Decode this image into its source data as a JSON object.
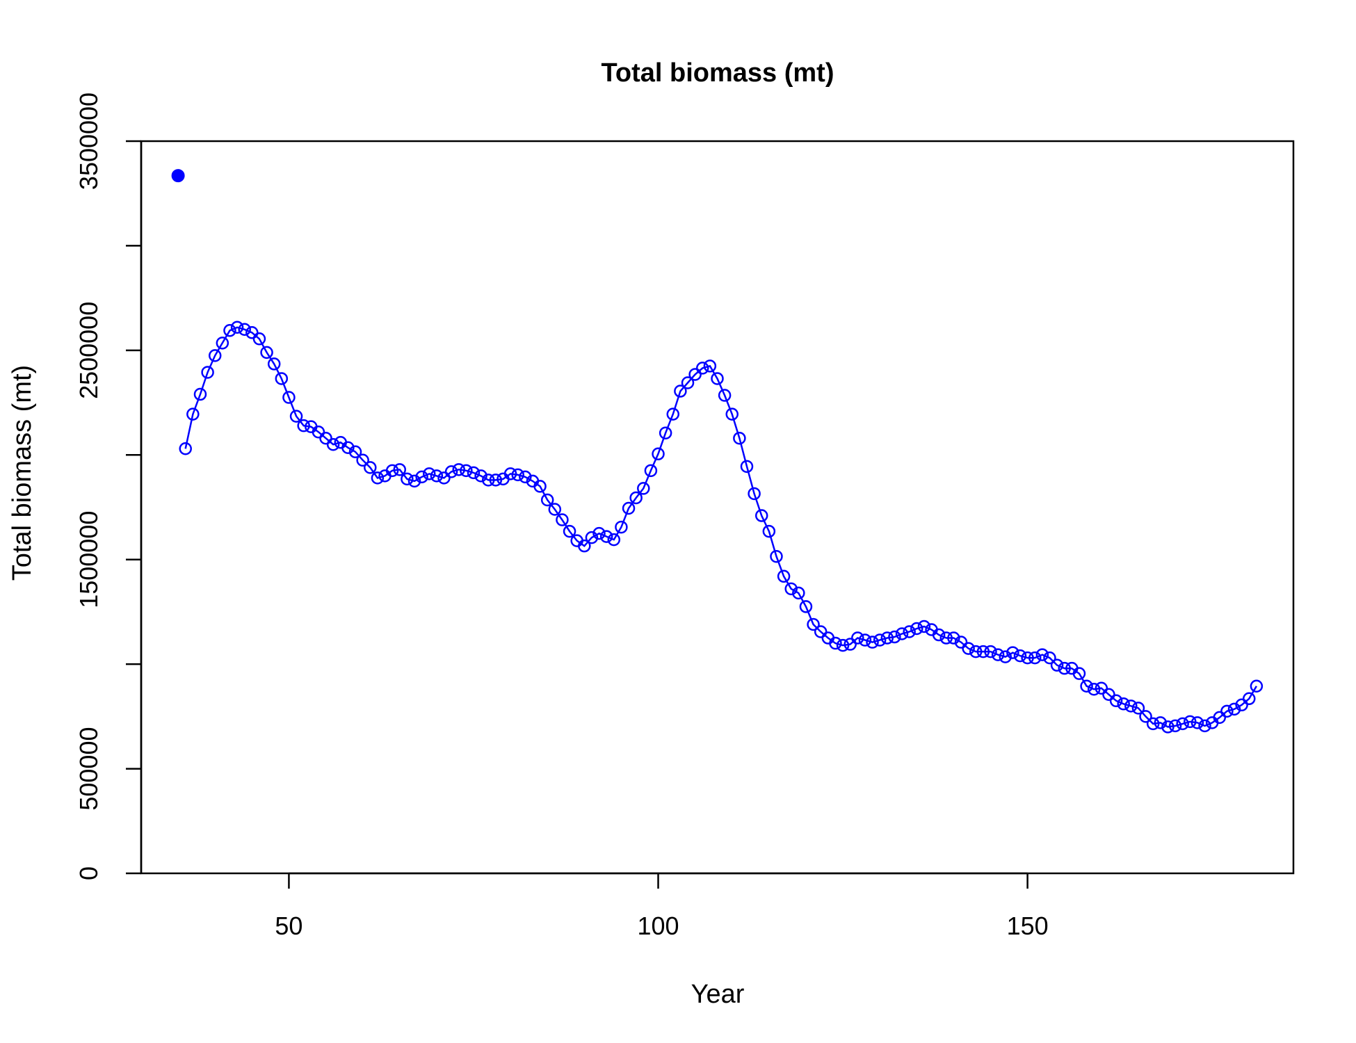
{
  "chart_data": {
    "type": "line",
    "title": "Total biomass (mt)",
    "xlabel": "Year",
    "ylabel": "Total biomass (mt)",
    "xlim": [
      30,
      186
    ],
    "ylim": [
      0,
      3500000
    ],
    "x_ticks": [
      50,
      100,
      150
    ],
    "y_ticks": [
      0,
      500000,
      1000000,
      1500000,
      2000000,
      2500000,
      3000000,
      3500000
    ],
    "y_tick_labels": [
      "0",
      "500000",
      "",
      "1500000",
      "",
      "2500000",
      "",
      "3500000"
    ],
    "grid": false,
    "line_color": "#0000ff",
    "virgin_point": {
      "x": 35,
      "y": 3335000
    },
    "series": [
      {
        "x": [
          36,
          37,
          38,
          39,
          40,
          41,
          42,
          43,
          44,
          45,
          46,
          47,
          48,
          49,
          50,
          51,
          52,
          53,
          54,
          55,
          56,
          57,
          58,
          59,
          60,
          61,
          62,
          63,
          64,
          65,
          66,
          67,
          68,
          69,
          70,
          71,
          72,
          73,
          74,
          75,
          76,
          77,
          78,
          79,
          80,
          81,
          82,
          83,
          84,
          85,
          86,
          87,
          88,
          89,
          90,
          91,
          92,
          93,
          94,
          95,
          96,
          97,
          98,
          99,
          100,
          101,
          102,
          103,
          104,
          105,
          106,
          107,
          108,
          109,
          110,
          111,
          112,
          113,
          114,
          115,
          116,
          117,
          118,
          119,
          120,
          121,
          122,
          123,
          124,
          125,
          126,
          127,
          128,
          129,
          130,
          131,
          132,
          133,
          134,
          135,
          136,
          137,
          138,
          139,
          140,
          141,
          142,
          143,
          144,
          145,
          146,
          147,
          148,
          149,
          150,
          151,
          152,
          153,
          154,
          155,
          156,
          157,
          158,
          159,
          160,
          161,
          162,
          163,
          164,
          165,
          166,
          167,
          168,
          169,
          170,
          171,
          172,
          173,
          174,
          175,
          176,
          177,
          178,
          179,
          180,
          181
        ],
        "y": [
          2030000,
          2195000,
          2290000,
          2395000,
          2475000,
          2535000,
          2595000,
          2610000,
          2600000,
          2585000,
          2555000,
          2490000,
          2435000,
          2365000,
          2275000,
          2185000,
          2140000,
          2135000,
          2110000,
          2080000,
          2050000,
          2060000,
          2035000,
          2015000,
          1975000,
          1940000,
          1890000,
          1900000,
          1925000,
          1930000,
          1885000,
          1875000,
          1895000,
          1910000,
          1900000,
          1890000,
          1920000,
          1930000,
          1925000,
          1915000,
          1900000,
          1880000,
          1880000,
          1885000,
          1910000,
          1905000,
          1895000,
          1875000,
          1850000,
          1785000,
          1740000,
          1690000,
          1635000,
          1590000,
          1565000,
          1605000,
          1625000,
          1610000,
          1595000,
          1655000,
          1745000,
          1795000,
          1840000,
          1925000,
          2005000,
          2105000,
          2195000,
          2305000,
          2345000,
          2385000,
          2415000,
          2425000,
          2365000,
          2285000,
          2195000,
          2080000,
          1945000,
          1815000,
          1710000,
          1635000,
          1515000,
          1420000,
          1360000,
          1340000,
          1275000,
          1190000,
          1155000,
          1125000,
          1100000,
          1090000,
          1095000,
          1125000,
          1115000,
          1105000,
          1115000,
          1125000,
          1130000,
          1145000,
          1155000,
          1170000,
          1180000,
          1165000,
          1140000,
          1125000,
          1125000,
          1105000,
          1075000,
          1060000,
          1060000,
          1060000,
          1045000,
          1035000,
          1055000,
          1040000,
          1030000,
          1030000,
          1045000,
          1030000,
          995000,
          980000,
          980000,
          955000,
          895000,
          880000,
          885000,
          855000,
          825000,
          810000,
          800000,
          790000,
          750000,
          715000,
          720000,
          700000,
          705000,
          715000,
          725000,
          720000,
          705000,
          720000,
          745000,
          775000,
          785000,
          805000,
          835000,
          895000
        ]
      }
    ]
  }
}
